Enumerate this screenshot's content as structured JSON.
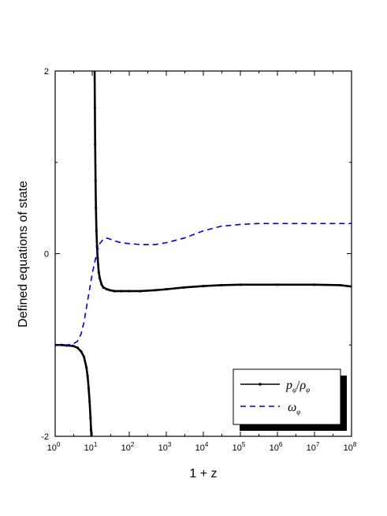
{
  "chart_data": {
    "type": "line",
    "title": "",
    "xlabel": "1 + z",
    "ylabel": "Defined equations of state",
    "xscale": "log",
    "xlim": [
      1,
      100000000
    ],
    "ylim": [
      -2,
      2
    ],
    "x_ticks": [
      1,
      10,
      100,
      1000,
      10000,
      100000,
      1000000,
      10000000,
      100000000
    ],
    "x_tick_labels": [
      {
        "base": "10",
        "exp": "0"
      },
      {
        "base": "10",
        "exp": "1"
      },
      {
        "base": "10",
        "exp": "2"
      },
      {
        "base": "10",
        "exp": "3"
      },
      {
        "base": "10",
        "exp": "4"
      },
      {
        "base": "10",
        "exp": "5"
      },
      {
        "base": "10",
        "exp": "6"
      },
      {
        "base": "10",
        "exp": "7"
      },
      {
        "base": "10",
        "exp": "8"
      }
    ],
    "y_ticks": [
      -2,
      0,
      2
    ],
    "y_tick_labels": [
      "-2",
      "0",
      "2"
    ],
    "grid": false,
    "legend_position": "bottom-right",
    "series": [
      {
        "name": "p_φ/ρ_φ",
        "legend_main_1": "p",
        "legend_sub_1": "φ",
        "legend_slash": "/",
        "legend_main_2": "ρ",
        "legend_sub_2": "φ",
        "color": "#000000",
        "style": "solid-dotted",
        "branches": [
          {
            "x": [
              1,
              1.5,
              2,
              3,
              4,
              5,
              6,
              7,
              7.5,
              8,
              8.5,
              9,
              9.3,
              9.5
            ],
            "y": [
              -1.0,
              -1.0,
              -1.005,
              -1.01,
              -1.03,
              -1.07,
              -1.13,
              -1.25,
              -1.34,
              -1.47,
              -1.62,
              -1.8,
              -1.93,
              -2.0
            ]
          },
          {
            "x": [
              11.6,
              11.8,
              12,
              12.3,
              12.6,
              13,
              13.5,
              14,
              15,
              16,
              18,
              20,
              25,
              30,
              40,
              60,
              100,
              200,
              500,
              1000,
              3000,
              10000,
              30000,
              100000,
              1000000,
              10000000,
              50000000,
              100000000
            ],
            "y": [
              2.0,
              1.6,
              1.2,
              0.8,
              0.5,
              0.25,
              0.08,
              -0.05,
              -0.2,
              -0.27,
              -0.34,
              -0.37,
              -0.39,
              -0.4,
              -0.41,
              -0.41,
              -0.41,
              -0.41,
              -0.4,
              -0.39,
              -0.37,
              -0.355,
              -0.345,
              -0.34,
              -0.34,
              -0.34,
              -0.345,
              -0.36
            ]
          }
        ]
      },
      {
        "name": "ω_φ",
        "legend_main_1": "ω",
        "legend_sub_1": "φ",
        "color": "#0000cc",
        "style": "dashed",
        "branches": [
          {
            "x": [
              1,
              2,
              3,
              4,
              5,
              6,
              8,
              10,
              12,
              14,
              16,
              20,
              25,
              30,
              40,
              60,
              100,
              200,
              500,
              1000,
              3000,
              10000,
              30000,
              100000,
              300000,
              1000000,
              10000000,
              100000000
            ],
            "y": [
              -1.0,
              -1.0,
              -0.99,
              -0.96,
              -0.88,
              -0.75,
              -0.45,
              -0.22,
              -0.07,
              0.04,
              0.11,
              0.16,
              0.17,
              0.16,
              0.14,
              0.12,
              0.11,
              0.1,
              0.1,
              0.12,
              0.17,
              0.25,
              0.3,
              0.32,
              0.33,
              0.33,
              0.33,
              0.33
            ]
          }
        ]
      }
    ]
  }
}
